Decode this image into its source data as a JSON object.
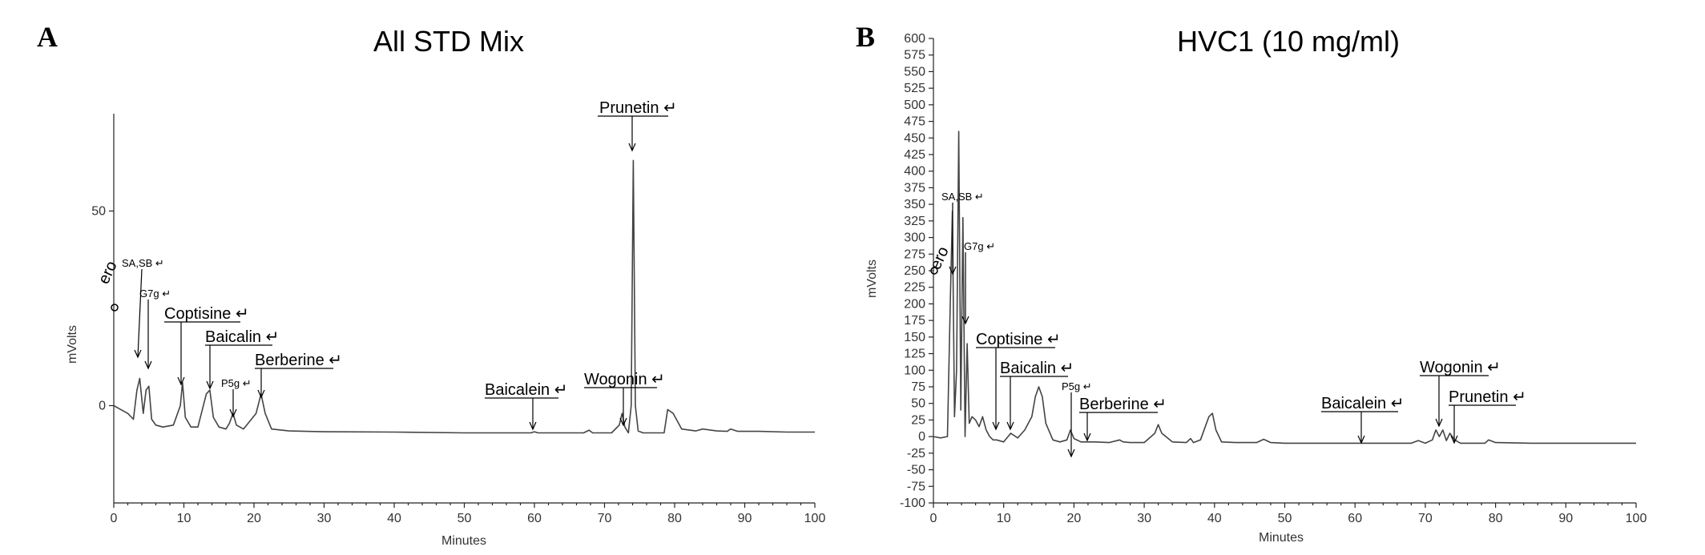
{
  "chart_data": [
    {
      "type": "line",
      "panel": "A",
      "title": "All STD Mix",
      "xlabel": "Minutes",
      "ylabel": "mVolts",
      "xlim": [
        0,
        100
      ],
      "ylim": [
        -25,
        75
      ],
      "xticks": [
        0,
        10,
        20,
        30,
        40,
        50,
        60,
        70,
        80,
        90,
        100
      ],
      "yticks": [
        0,
        50
      ],
      "grid": false,
      "series": [
        {
          "x": [
            0,
            1,
            2,
            2.8,
            3.3,
            3.7,
            4.2,
            4.6,
            5.0,
            5.4,
            6.0,
            7,
            8.5,
            9.5,
            9.8,
            10.2,
            11,
            12,
            13.2,
            13.7,
            14.2,
            15,
            16,
            16.5,
            17.0,
            17.5,
            18.5,
            20.3,
            21.0,
            21.6,
            22.5,
            25,
            30,
            40,
            50,
            58,
            59.5,
            60,
            60.5,
            62,
            67,
            67.8,
            68.3,
            69,
            71,
            72.1,
            72.5,
            72.9,
            73.4,
            73.8,
            74.1,
            74.4,
            74.8,
            75.5,
            77,
            78.5,
            79,
            79.8,
            81,
            83,
            84,
            86,
            87.5,
            88,
            89,
            92,
            96,
            100
          ],
          "y": [
            0,
            -1,
            -2,
            -3.5,
            4,
            7,
            -2,
            4,
            5,
            -3.5,
            -5,
            -5.5,
            -5,
            0,
            6,
            -3,
            -5.5,
            -5.5,
            3,
            4,
            -3,
            -5.5,
            -6,
            -4.5,
            -2,
            -5,
            -6,
            -2,
            3,
            -2,
            -6,
            -6.5,
            -6.7,
            -6.8,
            -7,
            -7,
            -7,
            -6.7,
            -7,
            -7,
            -7,
            -6.3,
            -7,
            -7,
            -7,
            -5,
            -2,
            -5.5,
            -7,
            0,
            63,
            0,
            -6.5,
            -7,
            -7,
            -7,
            -1,
            -2,
            -6,
            -6.5,
            -6,
            -6.5,
            -6.6,
            -6,
            -6.6,
            -6.6,
            -6.8,
            -6.8
          ]
        }
      ],
      "annotations": [
        {
          "label": "Prunetin",
          "x": 74.2
        },
        {
          "label": "SA,SB",
          "x": 3.5
        },
        {
          "label": "G7g",
          "x": 5.0
        },
        {
          "label": "Coptisine",
          "x": 9.8
        },
        {
          "label": "Baicalin",
          "x": 13.7
        },
        {
          "label": "Berberine",
          "x": 21.0
        },
        {
          "label": "P5g",
          "x": 17.0
        },
        {
          "label": "Baicalein",
          "x": 60.0
        },
        {
          "label": "Wogonin",
          "x": 72.5
        }
      ],
      "ret_marker": "↵"
    },
    {
      "type": "line",
      "panel": "B",
      "title": "HVC1 (10 mg/ml)",
      "xlabel": "Minutes",
      "ylabel": "mVolts",
      "xlim": [
        0,
        100
      ],
      "ylim": [
        -100,
        600
      ],
      "xticks": [
        0,
        10,
        20,
        30,
        40,
        50,
        60,
        70,
        80,
        90,
        100
      ],
      "yticks": [
        -100,
        -75,
        -50,
        -25,
        0,
        25,
        50,
        75,
        100,
        125,
        150,
        175,
        200,
        225,
        250,
        275,
        300,
        325,
        350,
        375,
        400,
        425,
        450,
        475,
        500,
        525,
        550,
        575,
        600
      ],
      "grid": false,
      "series": [
        {
          "x": [
            0,
            1,
            2,
            2.4,
            2.7,
            3.0,
            3.3,
            3.6,
            3.9,
            4.2,
            4.5,
            4.8,
            5.1,
            5.5,
            6.0,
            6.5,
            7.0,
            7.5,
            8.0,
            8.5,
            9,
            10,
            11,
            12,
            13,
            14,
            14.5,
            15.0,
            15.5,
            16,
            17,
            18,
            19,
            19.5,
            20,
            21,
            23,
            25,
            26.5,
            27,
            28,
            30,
            31.5,
            32,
            32.5,
            34,
            36,
            36.6,
            37,
            38,
            39.2,
            39.7,
            40.2,
            41,
            43,
            46,
            47,
            48,
            50,
            55,
            60,
            65,
            68,
            69,
            70,
            71,
            71.5,
            72,
            72.5,
            73,
            73.5,
            74.2,
            75,
            77,
            78.5,
            79,
            80,
            85,
            90,
            100
          ],
          "y": [
            0,
            -2,
            0,
            200,
            340,
            30,
            100,
            460,
            40,
            330,
            0,
            140,
            20,
            30,
            25,
            15,
            30,
            10,
            0,
            -5,
            -5,
            -8,
            5,
            -2,
            10,
            30,
            60,
            75,
            60,
            20,
            -5,
            -8,
            -5,
            10,
            -3,
            -8,
            -8,
            -9,
            -5,
            -8,
            -9,
            -9,
            5,
            18,
            5,
            -8,
            -9,
            -3,
            -9,
            -5,
            30,
            35,
            10,
            -8,
            -9,
            -9,
            -4,
            -9,
            -10,
            -10,
            -10,
            -10,
            -10,
            -6,
            -10,
            -5,
            10,
            0,
            10,
            -6,
            5,
            -5,
            -10,
            -10,
            -10,
            -5,
            -9,
            -10,
            -10,
            -10
          ]
        }
      ],
      "annotations": [
        {
          "label": "SA,SB",
          "x": 2.8
        },
        {
          "label": "G7g",
          "x": 4.6
        },
        {
          "label": "Coptisine",
          "x": 9.0
        },
        {
          "label": "Baicalin",
          "x": 11.0
        },
        {
          "label": "P5g",
          "x": 19.5
        },
        {
          "label": "Berberine",
          "x": 22.0
        },
        {
          "label": "Baicalein",
          "x": 60.5
        },
        {
          "label": "Wogonin",
          "x": 72.3
        },
        {
          "label": "Prunetin",
          "x": 74.2
        }
      ],
      "ret_marker": "↵"
    }
  ],
  "partial_label": "ero"
}
